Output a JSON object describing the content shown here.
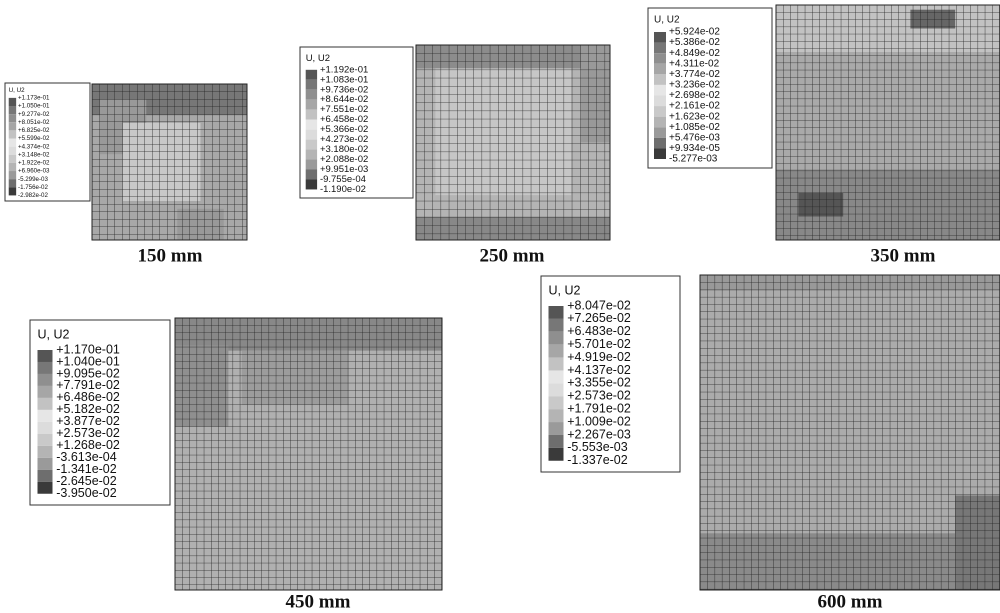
{
  "panels": [
    {
      "legend_title": "U, U2",
      "legend_values": [
        "+1.173e-01",
        "+1.050e-01",
        "+9.277e-02",
        "+8.051e-02",
        "+6.825e-02",
        "+5.599e-02",
        "+4.374e-02",
        "+3.148e-02",
        "+1.922e-02",
        "+6.960e-03",
        "-5.299e-03",
        "-1.756e-02",
        "-2.982e-02"
      ],
      "caption": "150 mm"
    },
    {
      "legend_title": "U, U2",
      "legend_values": [
        "+1.192e-01",
        "+1.083e-01",
        "+9.736e-02",
        "+8.644e-02",
        "+7.551e-02",
        "+6.458e-02",
        "+5.366e-02",
        "+4.273e-02",
        "+3.180e-02",
        "+2.088e-02",
        "+9.951e-03",
        "-9.755e-04",
        "-1.190e-02"
      ],
      "caption": "250 mm"
    },
    {
      "legend_title": "U, U2",
      "legend_values": [
        "+5.924e-02",
        "+5.386e-02",
        "+4.849e-02",
        "+4.311e-02",
        "+3.774e-02",
        "+3.236e-02",
        "+2.698e-02",
        "+2.161e-02",
        "+1.623e-02",
        "+1.085e-02",
        "+5.476e-03",
        "+9.934e-05",
        "-5.277e-03"
      ],
      "caption": "350 mm"
    },
    {
      "legend_title": "U, U2",
      "legend_values": [
        "+1.170e-01",
        "+1.040e-01",
        "+9.095e-02",
        "+7.791e-02",
        "+6.486e-02",
        "+5.182e-02",
        "+3.877e-02",
        "+2.573e-02",
        "+1.268e-02",
        "-3.613e-04",
        "-1.341e-02",
        "-2.645e-02",
        "-3.950e-02"
      ],
      "caption": "450 mm"
    },
    {
      "legend_title": "U, U2",
      "legend_values": [
        "+8.047e-02",
        "+7.265e-02",
        "+6.483e-02",
        "+5.701e-02",
        "+4.919e-02",
        "+4.137e-02",
        "+3.355e-02",
        "+2.573e-02",
        "+1.791e-02",
        "+1.009e-02",
        "+2.267e-03",
        "-5.553e-03",
        "-1.337e-02"
      ],
      "caption": "600 mm"
    }
  ]
}
